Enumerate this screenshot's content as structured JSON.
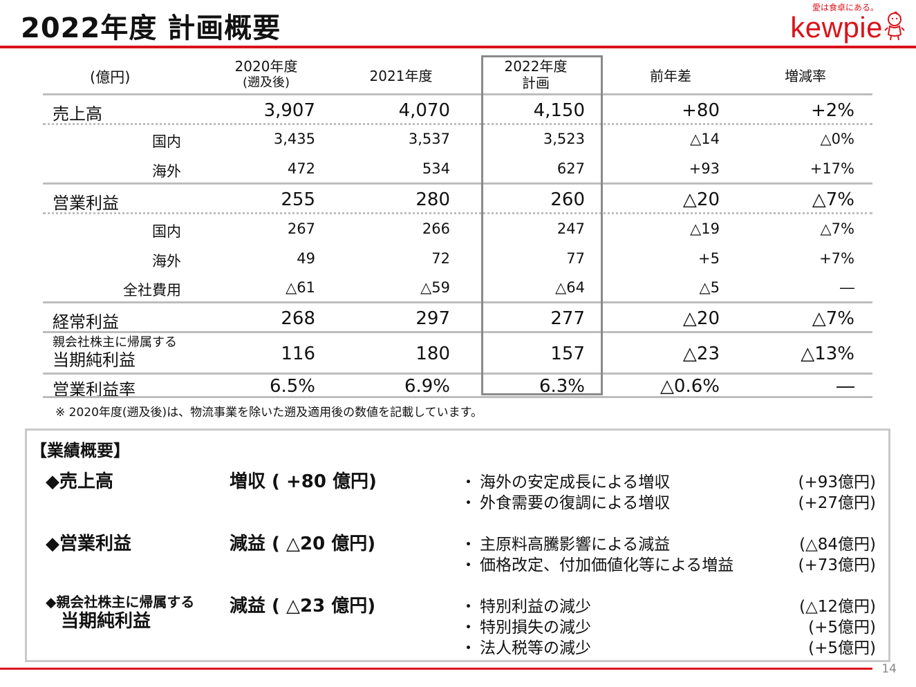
{
  "title": "2022年度 計画概要",
  "logo": {
    "tagline": "愛は食卓にある。",
    "wordmark": "kewpie",
    "icon": "kewpie-doll-icon"
  },
  "table": {
    "unit_label": "(億円)",
    "headers": [
      {
        "line1": "2020年度",
        "line2": "(遡及後)"
      },
      {
        "line1": "2021年度",
        "line2": ""
      },
      {
        "line1": "2022年度",
        "line2": "計画"
      },
      {
        "line1": "前年差",
        "line2": ""
      },
      {
        "line1": "増減率",
        "line2": ""
      }
    ],
    "rows": [
      {
        "label": "売上高",
        "values": [
          "3,907",
          "4,070",
          "4,150",
          "+80",
          "+2%"
        ]
      },
      {
        "label": "国内",
        "values": [
          "3,435",
          "3,537",
          "3,523",
          "△14",
          "△0%"
        ]
      },
      {
        "label": "海外",
        "values": [
          "472",
          "534",
          "627",
          "+93",
          "+17%"
        ]
      },
      {
        "label": "営業利益",
        "values": [
          "255",
          "280",
          "260",
          "△20",
          "△7%"
        ]
      },
      {
        "label": "国内",
        "values": [
          "267",
          "266",
          "247",
          "△19",
          "△7%"
        ]
      },
      {
        "label": "海外",
        "values": [
          "49",
          "72",
          "77",
          "+5",
          "+7%"
        ]
      },
      {
        "label": "全社費用",
        "values": [
          "△61",
          "△59",
          "△64",
          "△5",
          "―"
        ]
      },
      {
        "label": "経常利益",
        "values": [
          "268",
          "297",
          "277",
          "△20",
          "△7%"
        ]
      },
      {
        "label_line1": "親会社株主に帰属する",
        "label_line2": "当期純利益",
        "values": [
          "116",
          "180",
          "157",
          "△23",
          "△13%"
        ]
      },
      {
        "label": "営業利益率",
        "values": [
          "6.5%",
          "6.9%",
          "6.3%",
          "△0.6%",
          "―"
        ]
      }
    ],
    "footnote": "※ 2020年度(遡及後)は、物流事業を除いた遡及適用後の数値を記載しています。"
  },
  "summary": {
    "heading": "【業績概要】",
    "items": [
      {
        "label": "◆売上高",
        "result": "増収 ( +80 億円)",
        "bullets": [
          {
            "text": "海外の安定成長による増収",
            "amount": "(+93億円)"
          },
          {
            "text": "外食需要の復調による増収",
            "amount": "(+27億円)"
          }
        ]
      },
      {
        "label": "◆営業利益",
        "result": "減益 ( △20 億円)",
        "bullets": [
          {
            "text": "主原料高騰影響による減益",
            "amount": "(△84億円)"
          },
          {
            "text": "価格改定、付加価値化等による増益",
            "amount": "(+73億円)"
          }
        ]
      },
      {
        "label_line1": "◆親会社株主に帰属する",
        "label_line2": "当期純利益",
        "result": "減益 ( △23 億円)",
        "bullets": [
          {
            "text": "特別利益の減少",
            "amount": "(△12億円)"
          },
          {
            "text": "特別損失の減少",
            "amount": "(+5億円)"
          },
          {
            "text": "法人税等の減少",
            "amount": "(+5億円)"
          }
        ]
      }
    ],
    "bullet_mark": "・"
  },
  "page_number": "14",
  "colors": {
    "accent": "#d9141b",
    "rule": "#bdbdbd",
    "box": "#8a8a8a"
  }
}
